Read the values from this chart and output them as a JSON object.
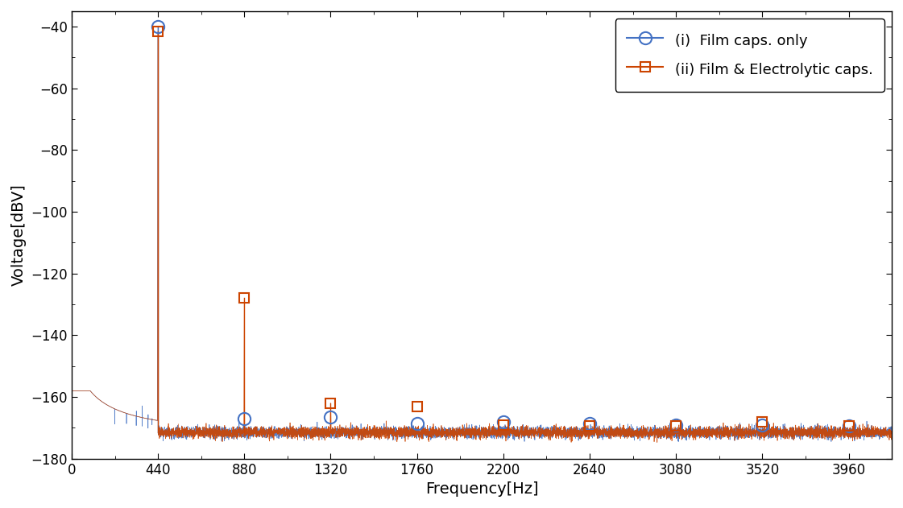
{
  "xlabel": "Frequency[Hz]",
  "ylabel": "Voltage[dBV]",
  "xlim": [
    0,
    4180
  ],
  "ylim": [
    -180,
    -35
  ],
  "xticks": [
    0,
    440,
    880,
    1320,
    1760,
    2200,
    2640,
    3080,
    3520,
    3960
  ],
  "yticks": [
    -40,
    -60,
    -80,
    -100,
    -120,
    -140,
    -160,
    -180
  ],
  "film_color": "#4472C4",
  "elec_color": "#CC4400",
  "legend_labels": [
    "(i)  Film caps. only",
    "(ii) Film & Electrolytic caps."
  ],
  "film_marker_freqs": [
    440,
    880,
    1320,
    1760,
    2200,
    2640,
    3080,
    3520,
    3960
  ],
  "film_marker_vals": [
    -40.0,
    -167.0,
    -166.5,
    -168.5,
    -168.0,
    -168.5,
    -169.0,
    -169.0,
    -169.5
  ],
  "elec_marker_freqs": [
    440,
    880,
    1320,
    1760,
    2200,
    2640,
    3080,
    3520,
    3960
  ],
  "elec_marker_vals": [
    -41.5,
    -128.0,
    -162.0,
    -163.0,
    -169.0,
    -169.5,
    -169.5,
    -168.0,
    -169.5
  ],
  "noise_floor": -171.5,
  "noise_amp": 0.9,
  "figsize": [
    11.21,
    6.31
  ],
  "dpi": 100
}
